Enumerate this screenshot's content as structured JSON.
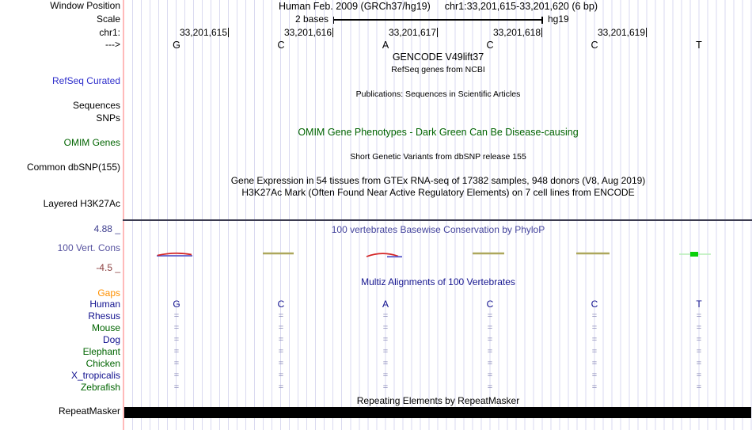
{
  "colors": {
    "track_label_blue": "#2d2dcb",
    "omim_green": "#006400",
    "navy_text": "#10108e",
    "phylop_title_indigo": "#45459d",
    "cons_label_purple": "#55519f",
    "neg_limit_maroon": "#8c4040",
    "gaps_orange": "#ff9000",
    "match_slate": "#8888b8",
    "gridline": "#dadaf0",
    "boundary_line_pink": "#ffbaba",
    "wiggle_olive": "#ada75c",
    "wiggle_red": "#d42525",
    "wiggle_blue": "#5c5ccc",
    "wiggle_green": "#0ad00a",
    "repeat_bar": "#000000"
  },
  "header": {
    "assembly": "Human Feb. 2009 (GRCh37/hg19)",
    "position": "chr1:33,201,615-33,201,620 (6 bp)"
  },
  "scale": {
    "label": "2 bases",
    "assembly": "hg19"
  },
  "sidebar": {
    "window_position": "Window Position",
    "scale": "Scale",
    "chromosome": "chr1:",
    "strand": "--->",
    "refseq_curated": "RefSeq Curated",
    "sequences": "Sequences",
    "snps": "SNPs",
    "omim_genes": "OMIM Genes",
    "common_dbsnp": "Common dbSNP(155)",
    "layered_h3k27ac": "Layered H3K27Ac",
    "cons_max": "4.88 _",
    "cons_track": "100 Vert. Cons",
    "cons_min": "-4.5 _",
    "gaps": "Gaps",
    "repeatmasker": "RepeatMasker",
    "species": [
      {
        "label": "Human",
        "color": "navy"
      },
      {
        "label": "Rhesus",
        "color": "navy"
      },
      {
        "label": "Mouse",
        "color": "green"
      },
      {
        "label": "Dog",
        "color": "navy"
      },
      {
        "label": "Elephant",
        "color": "green"
      },
      {
        "label": "Chicken",
        "color": "green"
      },
      {
        "label": "X_tropicalis",
        "color": "navy"
      },
      {
        "label": "Zebrafish",
        "color": "green"
      }
    ]
  },
  "ruler": {
    "tick_labels": [
      "33,201,615",
      "33,201,616",
      "33,201,617",
      "33,201,618",
      "33,201,619"
    ],
    "bases": [
      "G",
      "C",
      "A",
      "C",
      "C",
      "T"
    ]
  },
  "tracks": {
    "gencode_title": "GENCODE V49lift37",
    "refseq_subtitle": "RefSeq genes from NCBI",
    "publications_title": "Publications: Sequences in Scientific Articles",
    "omim_title": "OMIM Gene Phenotypes - Dark Green Can Be Disease-causing",
    "dbsnp_subtitle": "Short Genetic Variants from dbSNP release 155",
    "gtex_title": "Gene Expression in 54 tissues from GTEx RNA-seq of 17382 samples, 948 donors (V8, Aug 2019)",
    "h3k27ac_title": "H3K27Ac Mark (Often Found Near Active Regulatory Elements) on 7 cell lines from ENCODE",
    "phylop_title": "100 vertebrates Basewise Conservation by PhyloP",
    "multiz_title": "Multiz Alignments of 100 Vertebrates",
    "repeatmasker_title": "Repeating Elements by RepeatMasker"
  },
  "alignment": {
    "human_bases": [
      "G",
      "C",
      "A",
      "C",
      "C",
      "T"
    ],
    "match_symbol": "="
  },
  "conservation": {
    "y_max": 4.88,
    "y_min": -4.5,
    "segments": [
      {
        "base": "G",
        "position": "33,201,615",
        "render": "red arc over blue baseline, slightly negative"
      },
      {
        "base": "C",
        "position": "33,201,616",
        "render": "flat olive line near zero"
      },
      {
        "base": "A",
        "position": "33,201,617",
        "render": "red arc with blue tail, negative"
      },
      {
        "base": "C",
        "position": "33,201,618",
        "render": "flat olive line near zero"
      },
      {
        "base": "C",
        "position": "33,201,619",
        "render": "flat olive line near zero"
      },
      {
        "base": "T",
        "position": "33,201,620",
        "render": "bright green box on pale green line, positive"
      }
    ]
  }
}
